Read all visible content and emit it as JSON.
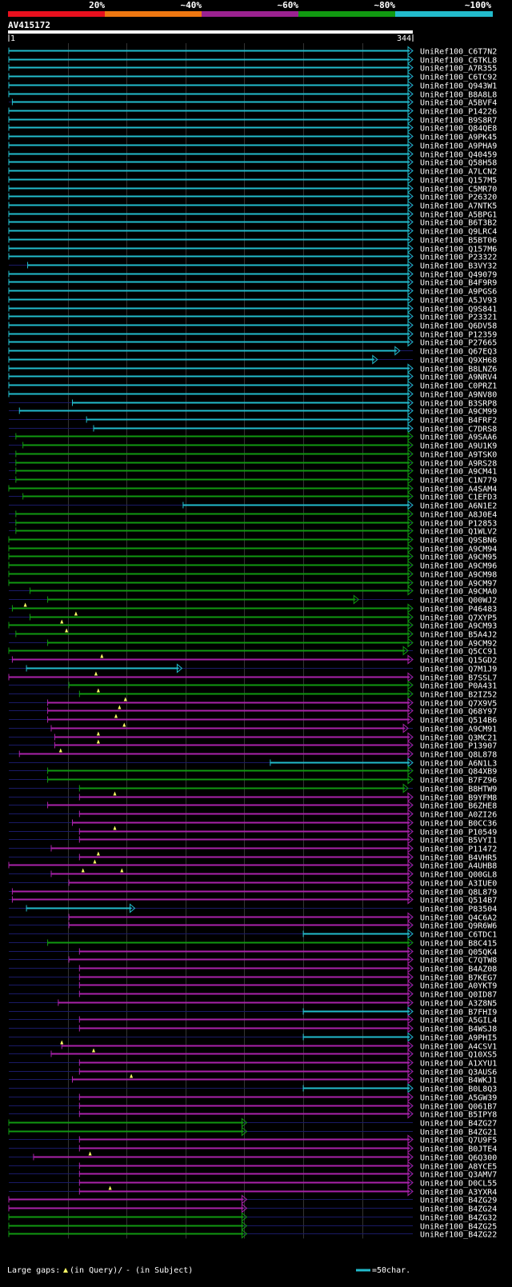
{
  "legend": {
    "labels": [
      "20%",
      "~40%",
      "~60%",
      "~80%",
      "~100%"
    ],
    "colors": [
      "#e8101e",
      "#ee7711",
      "#9b2290",
      "#119911",
      "#22bbcc"
    ]
  },
  "query": {
    "name": "AV415172",
    "start": "1",
    "end": "344",
    "length": 344
  },
  "colors": {
    "c": "#22bbcc",
    "g": "#119911",
    "m": "#aa22aa",
    "grid": "#333333",
    "gap": "#1a1a66",
    "marker": "#ffff66"
  },
  "hits": [
    {
      "name": "UniRef100_C6T7N2",
      "s": 1,
      "e": 344,
      "c": "c",
      "end": "arrow"
    },
    {
      "name": "UniRef100_C6TKL8",
      "s": 1,
      "e": 344,
      "c": "c",
      "end": "arrow"
    },
    {
      "name": "UniRef100_A7R355",
      "s": 1,
      "e": 344,
      "c": "c",
      "end": "arrow"
    },
    {
      "name": "UniRef100_C6TC92",
      "s": 1,
      "e": 344,
      "c": "c",
      "end": "arrow"
    },
    {
      "name": "UniRef100_Q943W1",
      "s": 1,
      "e": 344,
      "c": "c",
      "end": "arrow"
    },
    {
      "name": "UniRef100_B8A8L8",
      "s": 1,
      "e": 344,
      "c": "c",
      "end": "arrow"
    },
    {
      "name": "UniRef100_A5BVF4",
      "s": 4,
      "e": 344,
      "c": "c",
      "end": "arrow"
    },
    {
      "name": "UniRef100_P14226",
      "s": 1,
      "e": 344,
      "c": "c",
      "end": "arrow"
    },
    {
      "name": "UniRef100_B9S8R7",
      "s": 1,
      "e": 344,
      "c": "c",
      "end": "arrow"
    },
    {
      "name": "UniRef100_Q84QE8",
      "s": 1,
      "e": 344,
      "c": "c",
      "end": "arrow"
    },
    {
      "name": "UniRef100_A9PK45",
      "s": 1,
      "e": 344,
      "c": "c",
      "end": "arrow"
    },
    {
      "name": "UniRef100_A9PHA9",
      "s": 1,
      "e": 344,
      "c": "c",
      "end": "arrow"
    },
    {
      "name": "UniRef100_Q40459",
      "s": 1,
      "e": 344,
      "c": "c",
      "end": "arrow"
    },
    {
      "name": "UniRef100_Q58H58",
      "s": 1,
      "e": 344,
      "c": "c",
      "end": "arrow"
    },
    {
      "name": "UniRef100_A7LCN2",
      "s": 1,
      "e": 344,
      "c": "c",
      "end": "arrow"
    },
    {
      "name": "UniRef100_Q157M5",
      "s": 1,
      "e": 344,
      "c": "c",
      "end": "arrow"
    },
    {
      "name": "UniRef100_C5MR70",
      "s": 1,
      "e": 344,
      "c": "c",
      "end": "arrow"
    },
    {
      "name": "UniRef100_P26320",
      "s": 1,
      "e": 344,
      "c": "c",
      "end": "arrow"
    },
    {
      "name": "UniRef100_A7NTK5",
      "s": 1,
      "e": 344,
      "c": "c",
      "end": "arrow"
    },
    {
      "name": "UniRef100_A5BPG1",
      "s": 1,
      "e": 344,
      "c": "c",
      "end": "arrow"
    },
    {
      "name": "UniRef100_B6T3B2",
      "s": 1,
      "e": 344,
      "c": "c",
      "end": "arrow"
    },
    {
      "name": "UniRef100_Q9LRC4",
      "s": 1,
      "e": 344,
      "c": "c",
      "end": "arrow"
    },
    {
      "name": "UniRef100_B5BT06",
      "s": 1,
      "e": 344,
      "c": "c",
      "end": "arrow"
    },
    {
      "name": "UniRef100_Q157M6",
      "s": 1,
      "e": 344,
      "c": "c",
      "end": "arrow"
    },
    {
      "name": "UniRef100_P23322",
      "s": 1,
      "e": 344,
      "c": "c",
      "end": "arrow"
    },
    {
      "name": "UniRef100_B3VY32",
      "s": 17,
      "e": 344,
      "c": "c",
      "end": "arrow"
    },
    {
      "name": "UniRef100_Q49079",
      "s": 1,
      "e": 344,
      "c": "c",
      "end": "arrow"
    },
    {
      "name": "UniRef100_B4F9R9",
      "s": 1,
      "e": 344,
      "c": "c",
      "end": "arrow"
    },
    {
      "name": "UniRef100_A9PGS6",
      "s": 1,
      "e": 344,
      "c": "c",
      "end": "arrow"
    },
    {
      "name": "UniRef100_A5JV93",
      "s": 1,
      "e": 344,
      "c": "c",
      "end": "arrow"
    },
    {
      "name": "UniRef100_Q9S841",
      "s": 1,
      "e": 344,
      "c": "c",
      "end": "arrow"
    },
    {
      "name": "UniRef100_P23321",
      "s": 1,
      "e": 344,
      "c": "c",
      "end": "arrow"
    },
    {
      "name": "UniRef100_Q6DV58",
      "s": 1,
      "e": 344,
      "c": "c",
      "end": "arrow"
    },
    {
      "name": "UniRef100_P12359",
      "s": 1,
      "e": 344,
      "c": "c",
      "end": "arrow"
    },
    {
      "name": "UniRef100_P27665",
      "s": 1,
      "e": 344,
      "c": "c",
      "end": "arrow"
    },
    {
      "name": "UniRef100_Q67EQ3",
      "s": 1,
      "e": 333,
      "c": "c",
      "end": "arrow"
    },
    {
      "name": "UniRef100_Q9XH68",
      "s": 1,
      "e": 314,
      "c": "c",
      "end": "arrow"
    },
    {
      "name": "UniRef100_B8LNZ6",
      "s": 1,
      "e": 344,
      "c": "c",
      "end": "arrow"
    },
    {
      "name": "UniRef100_A9NRV4",
      "s": 1,
      "e": 344,
      "c": "c",
      "end": "arrow"
    },
    {
      "name": "UniRef100_C0PRZ1",
      "s": 1,
      "e": 344,
      "c": "c",
      "end": "arrow"
    },
    {
      "name": "UniRef100_A9NV80",
      "s": 1,
      "e": 344,
      "c": "c",
      "end": "arrow"
    },
    {
      "name": "UniRef100_B3SRP8",
      "s": 55,
      "e": 344,
      "c": "c",
      "end": "arrow"
    },
    {
      "name": "UniRef100_A9CM99",
      "s": 10,
      "e": 344,
      "c": "c",
      "end": "arrow"
    },
    {
      "name": "UniRef100_B4FRF2",
      "s": 67,
      "e": 344,
      "c": "c",
      "end": "arrow"
    },
    {
      "name": "UniRef100_C7DRS8",
      "s": 73,
      "e": 344,
      "c": "c",
      "end": "arrow"
    },
    {
      "name": "UniRef100_A9SAA6",
      "s": 7,
      "e": 344,
      "c": "g",
      "end": "arrow"
    },
    {
      "name": "UniRef100_A9U1K9",
      "s": 13,
      "e": 344,
      "c": "g",
      "end": "arrow"
    },
    {
      "name": "UniRef100_A9TSK0",
      "s": 7,
      "e": 344,
      "c": "g",
      "end": "arrow"
    },
    {
      "name": "UniRef100_A9RS28",
      "s": 7,
      "e": 344,
      "c": "g",
      "end": "arrow"
    },
    {
      "name": "UniRef100_A9CM41",
      "s": 7,
      "e": 344,
      "c": "g",
      "end": "arrow"
    },
    {
      "name": "UniRef100_C1N779",
      "s": 7,
      "e": 344,
      "c": "g",
      "end": "arrow"
    },
    {
      "name": "UniRef100_A4SAM4",
      "s": 1,
      "e": 344,
      "c": "g",
      "end": "arrow"
    },
    {
      "name": "UniRef100_C1EFD3",
      "s": 13,
      "e": 344,
      "c": "g",
      "end": "arrow"
    },
    {
      "name": "UniRef100_A6N1E2",
      "s": 149,
      "e": 344,
      "c": "c",
      "end": "arrow"
    },
    {
      "name": "UniRef100_A8J0E4",
      "s": 7,
      "e": 344,
      "c": "g",
      "end": "arrow"
    },
    {
      "name": "UniRef100_P12853",
      "s": 7,
      "e": 344,
      "c": "g",
      "end": "arrow"
    },
    {
      "name": "UniRef100_Q1WLV2",
      "s": 7,
      "e": 344,
      "c": "g",
      "end": "arrow"
    },
    {
      "name": "UniRef100_Q9SBN6",
      "s": 1,
      "e": 344,
      "c": "g",
      "end": "arrow"
    },
    {
      "name": "UniRef100_A9CM94",
      "s": 1,
      "e": 344,
      "c": "g",
      "end": "arrow"
    },
    {
      "name": "UniRef100_A9CM95",
      "s": 1,
      "e": 344,
      "c": "g",
      "end": "arrow"
    },
    {
      "name": "UniRef100_A9CM96",
      "s": 1,
      "e": 344,
      "c": "g",
      "end": "arrow"
    },
    {
      "name": "UniRef100_A9CM98",
      "s": 1,
      "e": 344,
      "c": "g",
      "end": "arrow"
    },
    {
      "name": "UniRef100_A9CM97",
      "s": 1,
      "e": 344,
      "c": "g",
      "end": "arrow"
    },
    {
      "name": "UniRef100_A9CMA0",
      "s": 19,
      "e": 344,
      "c": "g",
      "end": "arrow"
    },
    {
      "name": "UniRef100_Q00WJ2",
      "s": 34,
      "e": 298,
      "c": "g",
      "end": "arrow"
    },
    {
      "name": "UniRef100_P46483",
      "s": 4,
      "e": 344,
      "c": "g",
      "end": "arrow",
      "q": [
        15
      ]
    },
    {
      "name": "UniRef100_Q7XYP5",
      "s": 19,
      "e": 344,
      "c": "g",
      "end": "arrow",
      "q": [
        58
      ]
    },
    {
      "name": "UniRef100_A9CM93",
      "s": 1,
      "e": 344,
      "c": "g",
      "end": "arrow",
      "q": [
        46
      ]
    },
    {
      "name": "UniRef100_B5A4J2",
      "s": 7,
      "e": 344,
      "c": "g",
      "end": "arrow",
      "q": [
        50
      ]
    },
    {
      "name": "UniRef100_A9CM92",
      "s": 34,
      "e": 344,
      "c": "g",
      "end": "arrow"
    },
    {
      "name": "UniRef100_Q5CC91",
      "s": 1,
      "e": 340,
      "c": "g",
      "end": "arrow"
    },
    {
      "name": "UniRef100_Q15GD2",
      "s": 4,
      "e": 344,
      "c": "m",
      "end": "arrow",
      "q": [
        80
      ]
    },
    {
      "name": "UniRef100_Q7M1J9",
      "s": 16,
      "e": 148,
      "c": "c",
      "end": "arrow"
    },
    {
      "name": "UniRef100_B7SSL7",
      "s": 1,
      "e": 344,
      "c": "m",
      "end": "arrow",
      "q": [
        75
      ]
    },
    {
      "name": "UniRef100_P0A431",
      "s": 52,
      "e": 344,
      "c": "g",
      "end": "arrow"
    },
    {
      "name": "UniRef100_B2IZ52",
      "s": 61,
      "e": 344,
      "c": "g",
      "end": "arrow",
      "q": [
        77
      ]
    },
    {
      "name": "UniRef100_Q7X9V5",
      "s": 34,
      "e": 344,
      "c": "m",
      "end": "arrow",
      "q": [
        100
      ]
    },
    {
      "name": "UniRef100_Q68Y97",
      "s": 34,
      "e": 344,
      "c": "m",
      "end": "arrow",
      "q": [
        95
      ]
    },
    {
      "name": "UniRef100_Q514B6",
      "s": 34,
      "e": 344,
      "c": "m",
      "end": "arrow",
      "q": [
        92
      ]
    },
    {
      "name": "UniRef100_A9CM91",
      "s": 37,
      "e": 340,
      "c": "m",
      "end": "arrow",
      "q": [
        99
      ]
    },
    {
      "name": "UniRef100_Q3MC21",
      "s": 40,
      "e": 344,
      "c": "m",
      "end": "arrow",
      "q": [
        77
      ]
    },
    {
      "name": "UniRef100_P13907",
      "s": 40,
      "e": 344,
      "c": "m",
      "end": "arrow",
      "q": [
        77
      ]
    },
    {
      "name": "UniRef100_Q8L878",
      "s": 10,
      "e": 344,
      "c": "m",
      "end": "arrow",
      "q": [
        45
      ]
    },
    {
      "name": "UniRef100_A6N1L3",
      "s": 223,
      "e": 344,
      "c": "c",
      "end": "arrow"
    },
    {
      "name": "UniRef100_Q84XB9",
      "s": 34,
      "e": 344,
      "c": "g",
      "end": "arrow"
    },
    {
      "name": "UniRef100_B7FZ96",
      "s": 34,
      "e": 344,
      "c": "g",
      "end": "arrow"
    },
    {
      "name": "UniRef100_B8HTW9",
      "s": 61,
      "e": 340,
      "c": "g",
      "end": "arrow"
    },
    {
      "name": "UniRef100_B9YFM8",
      "s": 61,
      "e": 344,
      "c": "m",
      "end": "arrow",
      "q": [
        91
      ]
    },
    {
      "name": "UniRef100_B6ZHE8",
      "s": 34,
      "e": 344,
      "c": "m",
      "end": "arrow"
    },
    {
      "name": "UniRef100_A0ZI26",
      "s": 61,
      "e": 344,
      "c": "m",
      "end": "arrow"
    },
    {
      "name": "UniRef100_B0CC36",
      "s": 55,
      "e": 344,
      "c": "m",
      "end": "arrow"
    },
    {
      "name": "UniRef100_P10549",
      "s": 61,
      "e": 344,
      "c": "m",
      "end": "arrow",
      "q": [
        91
      ]
    },
    {
      "name": "UniRef100_B5VYI1",
      "s": 61,
      "e": 344,
      "c": "m",
      "end": "arrow"
    },
    {
      "name": "UniRef100_P11472",
      "s": 37,
      "e": 344,
      "c": "m",
      "end": "arrow"
    },
    {
      "name": "UniRef100_B4VHR5",
      "s": 61,
      "e": 344,
      "c": "m",
      "end": "arrow",
      "q": [
        77
      ]
    },
    {
      "name": "UniRef100_A4UHB8",
      "s": 1,
      "e": 344,
      "c": "m",
      "end": "arrow",
      "q": [
        74
      ]
    },
    {
      "name": "UniRef100_Q00GL8",
      "s": 37,
      "e": 344,
      "c": "m",
      "end": "arrow",
      "q": [
        64,
        97
      ]
    },
    {
      "name": "UniRef100_A3IUE0",
      "s": 52,
      "e": 344,
      "c": "m",
      "end": "arrow"
    },
    {
      "name": "UniRef100_Q8L879",
      "s": 4,
      "e": 344,
      "c": "m",
      "end": "arrow"
    },
    {
      "name": "UniRef100_Q514B7",
      "s": 4,
      "e": 344,
      "c": "m",
      "end": "arrow"
    },
    {
      "name": "UniRef100_P83504",
      "s": 16,
      "e": 108,
      "c": "c",
      "end": "arrow"
    },
    {
      "name": "UniRef100_Q4C6A2",
      "s": 52,
      "e": 344,
      "c": "m",
      "end": "arrow"
    },
    {
      "name": "UniRef100_Q9R6W6",
      "s": 52,
      "e": 344,
      "c": "m",
      "end": "arrow"
    },
    {
      "name": "UniRef100_C6TDC1",
      "s": 251,
      "e": 344,
      "c": "c",
      "end": "arrow"
    },
    {
      "name": "UniRef100_B8C415",
      "s": 34,
      "e": 344,
      "c": "g",
      "end": "arrow"
    },
    {
      "name": "UniRef100_Q05QK4",
      "s": 61,
      "e": 344,
      "c": "m",
      "end": "arrow"
    },
    {
      "name": "UniRef100_C7QTW8",
      "s": 52,
      "e": 344,
      "c": "m",
      "end": "arrow"
    },
    {
      "name": "UniRef100_B4AZ08",
      "s": 61,
      "e": 344,
      "c": "m",
      "end": "arrow"
    },
    {
      "name": "UniRef100_B7KEG7",
      "s": 61,
      "e": 344,
      "c": "m",
      "end": "arrow"
    },
    {
      "name": "UniRef100_A0YKT9",
      "s": 61,
      "e": 344,
      "c": "m",
      "end": "arrow"
    },
    {
      "name": "UniRef100_Q0ID87",
      "s": 61,
      "e": 344,
      "c": "m",
      "end": "arrow"
    },
    {
      "name": "UniRef100_A3Z8N5",
      "s": 43,
      "e": 344,
      "c": "m",
      "end": "arrow"
    },
    {
      "name": "UniRef100_B7FHI9",
      "s": 251,
      "e": 344,
      "c": "c",
      "end": "arrow"
    },
    {
      "name": "UniRef100_A5GIL4",
      "s": 61,
      "e": 344,
      "c": "m",
      "end": "arrow"
    },
    {
      "name": "UniRef100_B4WSJ8",
      "s": 61,
      "e": 344,
      "c": "m",
      "end": "arrow"
    },
    {
      "name": "UniRef100_A9PHI5",
      "s": 251,
      "e": 344,
      "c": "c",
      "end": "arrow"
    },
    {
      "name": "UniRef100_A4CSV1",
      "s": 46,
      "e": 344,
      "c": "m",
      "end": "arrow",
      "q": [
        46
      ]
    },
    {
      "name": "UniRef100_Q10XS5",
      "s": 37,
      "e": 344,
      "c": "m",
      "end": "arrow",
      "q": [
        73
      ]
    },
    {
      "name": "UniRef100_A1XYU1",
      "s": 61,
      "e": 344,
      "c": "m",
      "end": "arrow"
    },
    {
      "name": "UniRef100_Q3AUS6",
      "s": 61,
      "e": 344,
      "c": "m",
      "end": "arrow"
    },
    {
      "name": "UniRef100_B4WKJ1",
      "s": 55,
      "e": 344,
      "c": "m",
      "end": "arrow",
      "q": [
        105
      ]
    },
    {
      "name": "UniRef100_B0L8Q3",
      "s": 251,
      "e": 344,
      "c": "c",
      "end": "arrow"
    },
    {
      "name": "UniRef100_A5GW39",
      "s": 61,
      "e": 344,
      "c": "m",
      "end": "arrow"
    },
    {
      "name": "UniRef100_Q061B7",
      "s": 61,
      "e": 344,
      "c": "m",
      "end": "arrow"
    },
    {
      "name": "UniRef100_B5IPY8",
      "s": 61,
      "e": 344,
      "c": "m",
      "end": "arrow"
    },
    {
      "name": "UniRef100_B4ZG27",
      "s": 1,
      "e": 203,
      "c": "g",
      "end": "arrow"
    },
    {
      "name": "UniRef100_B4ZG21",
      "s": 1,
      "e": 203,
      "c": "g",
      "end": "arrow"
    },
    {
      "name": "UniRef100_Q7U9F5",
      "s": 61,
      "e": 344,
      "c": "m",
      "end": "arrow"
    },
    {
      "name": "UniRef100_B0JTE4",
      "s": 61,
      "e": 344,
      "c": "m",
      "end": "arrow"
    },
    {
      "name": "UniRef100_Q6Q300",
      "s": 22,
      "e": 344,
      "c": "m",
      "end": "arrow",
      "q": [
        70
      ]
    },
    {
      "name": "UniRef100_A8YCE5",
      "s": 61,
      "e": 344,
      "c": "m",
      "end": "arrow"
    },
    {
      "name": "UniRef100_Q3AMV7",
      "s": 61,
      "e": 344,
      "c": "m",
      "end": "arrow"
    },
    {
      "name": "UniRef100_D0CL55",
      "s": 61,
      "e": 344,
      "c": "m",
      "end": "arrow"
    },
    {
      "name": "UniRef100_A3YXR4",
      "s": 61,
      "e": 344,
      "c": "m",
      "end": "arrow",
      "q": [
        87
      ]
    },
    {
      "name": "UniRef100_B4ZG29",
      "s": 1,
      "e": 203,
      "c": "m",
      "end": "arrow"
    },
    {
      "name": "UniRef100_B4ZG24",
      "s": 1,
      "e": 203,
      "c": "m",
      "end": "arrow"
    },
    {
      "name": "UniRef100_B4ZG32",
      "s": 1,
      "e": 203,
      "c": "g",
      "end": "arrow"
    },
    {
      "name": "UniRef100_B4ZG25",
      "s": 1,
      "e": 203,
      "c": "g",
      "end": "arrow"
    },
    {
      "name": "UniRef100_B4ZG22",
      "s": 1,
      "e": 203,
      "c": "g",
      "end": "arrow"
    }
  ],
  "footer": {
    "gaps_label": "Large gaps:",
    "in_query": "(in Query)/",
    "in_subject": "- (in Subject)",
    "scale_label": "=50char."
  }
}
